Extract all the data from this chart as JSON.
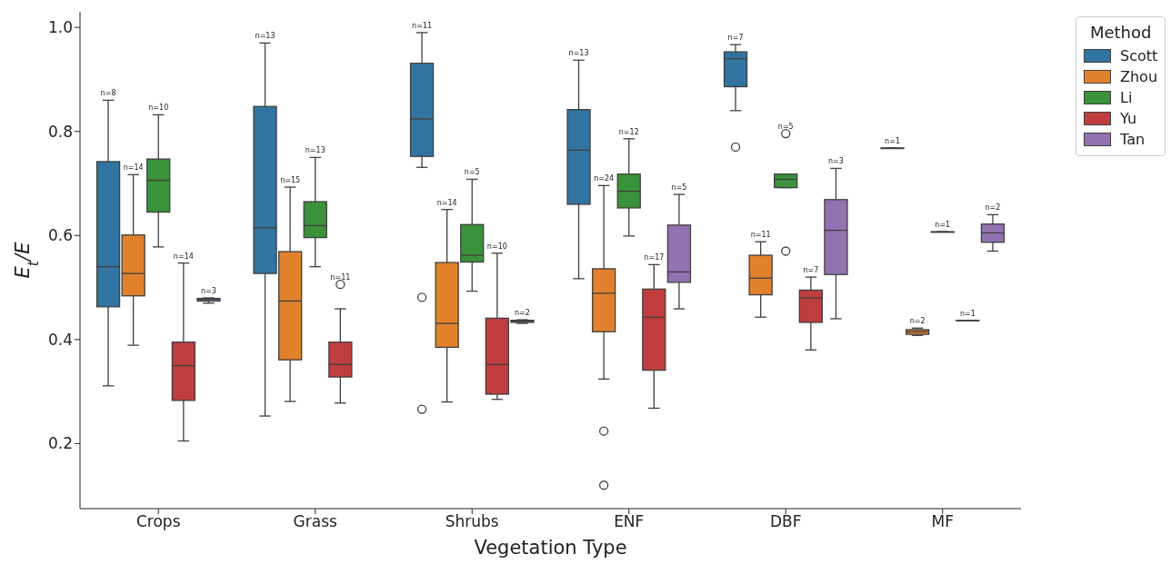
{
  "chart_data": {
    "type": "box",
    "xlabel": "Vegetation Type",
    "ylabel": "E$_{t}$/E",
    "legend_title": "Method",
    "legend": "top right",
    "categories": [
      "Crops",
      "Grass",
      "Shrubs",
      "ENF",
      "DBF",
      "MF"
    ],
    "ylim": [
      0.075,
      1.03
    ],
    "yticks": [
      0.2,
      0.4,
      0.6,
      0.8,
      {
        "value": 1.0,
        "label": "1.0"
      }
    ],
    "series": [
      {
        "name": "Scott",
        "color": "#3274a1",
        "boxes": [
          {
            "low": 0.311,
            "q1": 0.463,
            "median": 0.54,
            "q3": 0.742,
            "high": 0.86
          },
          {
            "low": 0.253,
            "q1": 0.527,
            "median": 0.615,
            "q3": 0.848,
            "high": 0.97
          },
          {
            "low": 0.731,
            "q1": 0.752,
            "median": 0.824,
            "q3": 0.931,
            "high": 0.99,
            "outliers": [
              0.481,
              0.266
            ]
          },
          {
            "low": 0.517,
            "q1": 0.66,
            "median": 0.764,
            "q3": 0.842,
            "high": 0.937
          },
          {
            "low": 0.84,
            "q1": 0.886,
            "median": 0.94,
            "q3": 0.953,
            "high": 0.967,
            "outliers": [
              0.77
            ]
          },
          {
            "low": 0.768,
            "q1": 0.768,
            "median": 0.768,
            "q3": 0.768,
            "high": 0.768
          }
        ]
      },
      {
        "name": "Zhou",
        "color": "#e1812c",
        "boxes": [
          {
            "low": 0.389,
            "q1": 0.484,
            "median": 0.527,
            "q3": 0.601,
            "high": 0.717
          },
          {
            "low": 0.281,
            "q1": 0.361,
            "median": 0.474,
            "q3": 0.569,
            "high": 0.693
          },
          {
            "low": 0.28,
            "q1": 0.385,
            "median": 0.431,
            "q3": 0.548,
            "high": 0.65
          },
          {
            "low": 0.324,
            "q1": 0.415,
            "median": 0.489,
            "q3": 0.536,
            "high": 0.696,
            "outliers": [
              0.224,
              0.12
            ]
          },
          {
            "low": 0.443,
            "q1": 0.486,
            "median": 0.518,
            "q3": 0.562,
            "high": 0.588
          },
          {
            "low": 0.408,
            "q1": 0.41,
            "median": 0.415,
            "q3": 0.419,
            "high": 0.422
          }
        ]
      },
      {
        "name": "Li",
        "color": "#3a923a",
        "boxes": [
          {
            "low": 0.578,
            "q1": 0.645,
            "median": 0.706,
            "q3": 0.747,
            "high": 0.832
          },
          {
            "low": 0.54,
            "q1": 0.596,
            "median": 0.619,
            "q3": 0.665,
            "high": 0.75
          },
          {
            "low": 0.493,
            "q1": 0.549,
            "median": 0.562,
            "q3": 0.621,
            "high": 0.708
          },
          {
            "low": 0.599,
            "q1": 0.653,
            "median": 0.685,
            "q3": 0.718,
            "high": 0.786
          },
          {
            "low": 0.692,
            "q1": 0.692,
            "median": 0.708,
            "q3": 0.718,
            "high": 0.718,
            "outliers": [
              0.796,
              0.57
            ]
          },
          {
            "low": 0.607,
            "q1": 0.607,
            "median": 0.607,
            "q3": 0.607,
            "high": 0.607
          }
        ]
      },
      {
        "name": "Yu",
        "color": "#c03d3e",
        "boxes": [
          {
            "low": 0.205,
            "q1": 0.283,
            "median": 0.35,
            "q3": 0.395,
            "high": 0.547
          },
          {
            "low": 0.278,
            "q1": 0.328,
            "median": 0.352,
            "q3": 0.395,
            "high": 0.459,
            "outliers": [
              0.506
            ]
          },
          {
            "low": 0.285,
            "q1": 0.295,
            "median": 0.352,
            "q3": 0.441,
            "high": 0.566
          },
          {
            "low": 0.268,
            "q1": 0.341,
            "median": 0.443,
            "q3": 0.497,
            "high": 0.544
          },
          {
            "low": 0.38,
            "q1": 0.433,
            "median": 0.48,
            "q3": 0.495,
            "high": 0.52
          },
          {
            "low": 0.437,
            "q1": 0.437,
            "median": 0.437,
            "q3": 0.437,
            "high": 0.437
          }
        ]
      },
      {
        "name": "Tan",
        "color": "#9372b2",
        "boxes": [
          {
            "low": 0.47,
            "q1": 0.474,
            "median": 0.477,
            "q3": 0.479,
            "high": 0.48
          },
          null,
          {
            "low": 0.431,
            "q1": 0.433,
            "median": 0.435,
            "q3": 0.437,
            "high": 0.438
          },
          {
            "low": 0.459,
            "q1": 0.51,
            "median": 0.53,
            "q3": 0.62,
            "high": 0.679
          },
          {
            "low": 0.44,
            "q1": 0.525,
            "median": 0.61,
            "q3": 0.669,
            "high": 0.729
          },
          {
            "low": 0.57,
            "q1": 0.587,
            "median": 0.605,
            "q3": 0.622,
            "high": 0.64
          }
        ]
      }
    ],
    "annotations": [
      "n=8",
      "n=14",
      "n=10",
      "n=14",
      "n=3",
      "n=13",
      "n=15",
      "n=13",
      "n=11",
      "n=11",
      "n=14",
      "n=5",
      "n=10",
      "n=2",
      "n=13",
      "n=24",
      "n=12",
      "n=17",
      "n=5",
      "n=7",
      "n=11",
      "n=5",
      "n=7",
      "n=3",
      "n=1",
      "n=2",
      "n=1",
      "n=1",
      "n=2"
    ]
  }
}
